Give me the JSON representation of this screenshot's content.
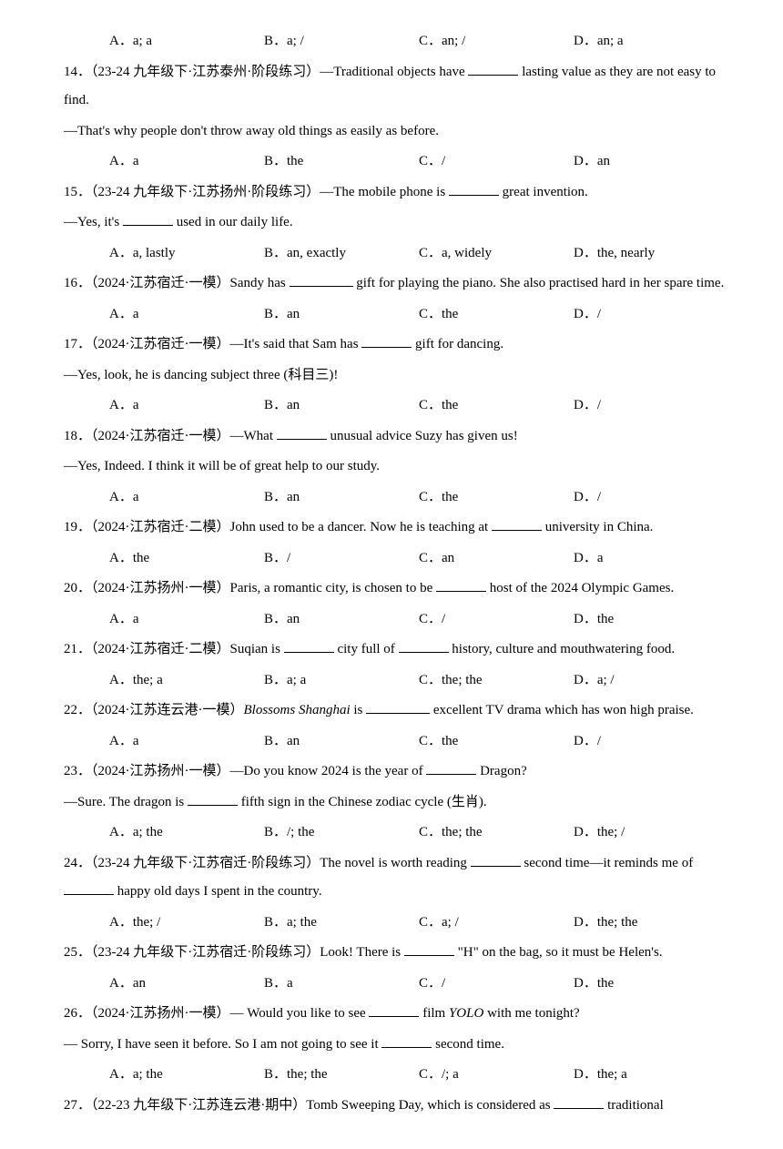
{
  "q13_options": {
    "a": "A．a; a",
    "b": "B．a; /",
    "c": "C．an; /",
    "d": "D．an; a"
  },
  "q14": {
    "num": "14．",
    "source": "（23-24 九年级下·江苏泰州·阶段练习）",
    "text1": "—Traditional objects have ",
    "text2": " lasting value as they are not easy to find.",
    "line2": "—That's why people don't throw away old things as easily as before.",
    "options": {
      "a": "A．a",
      "b": "B．the",
      "c": "C．/",
      "d": "D．an"
    }
  },
  "q15": {
    "num": "15．",
    "source": "（23-24 九年级下·江苏扬州·阶段练习）",
    "text1": "—The mobile phone is ",
    "text2": " great invention.",
    "line2a": "—Yes, it's ",
    "line2b": " used in our daily life.",
    "options": {
      "a": "A．a, lastly",
      "b": "B．an, exactly",
      "c": "C．a, widely",
      "d": "D．the, nearly"
    }
  },
  "q16": {
    "num": "16．",
    "source": "（2024·江苏宿迁·一模）",
    "text1": "Sandy has ",
    "text2": " gift for playing the piano. She also practised hard in her spare time.",
    "options": {
      "a": "A．a",
      "b": "B．an",
      "c": "C．the",
      "d": "D．/"
    }
  },
  "q17": {
    "num": "17．",
    "source": "（2024·江苏宿迁·一模）",
    "text1": "—It's said that Sam has ",
    "text2": " gift for dancing.",
    "line2": "—Yes, look, he is dancing subject three (科目三)!",
    "options": {
      "a": "A．a",
      "b": "B．an",
      "c": "C．the",
      "d": "D．/"
    }
  },
  "q18": {
    "num": "18．",
    "source": "（2024·江苏宿迁·一模）",
    "text1": "—What ",
    "text2": " unusual advice Suzy has given us!",
    "line2": "—Yes, Indeed. I think it will be of great help to our study.",
    "options": {
      "a": "A．a",
      "b": "B．an",
      "c": "C．the",
      "d": "D．/"
    }
  },
  "q19": {
    "num": "19．",
    "source": "（2024·江苏宿迁·二模）",
    "text1": "John used to be a dancer. Now he is teaching at ",
    "text2": " university in China.",
    "options": {
      "a": "A．the",
      "b": "B．/",
      "c": "C．an",
      "d": "D．a"
    }
  },
  "q20": {
    "num": "20．",
    "source": "（2024·江苏扬州·一模）",
    "text1": "Paris, a romantic city, is chosen to be ",
    "text2": " host of the 2024 Olympic Games.",
    "options": {
      "a": "A．a",
      "b": "B．an",
      "c": "C．/",
      "d": "D．the"
    }
  },
  "q21": {
    "num": "21．",
    "source": "（2024·江苏宿迁·二模）",
    "text1": "Suqian is ",
    "text2": " city full of ",
    "text3": " history, culture and mouthwatering food.",
    "options": {
      "a": "A．the; a",
      "b": "B．a; a",
      "c": "C．the; the",
      "d": "D．a; /"
    }
  },
  "q22": {
    "num": "22．",
    "source": "（2024·江苏连云港·一模）",
    "italic": "Blossoms Shanghai",
    "text1": " is ",
    "text2": " excellent TV drama which has won high praise.",
    "options": {
      "a": "A．a",
      "b": "B．an",
      "c": "C．the",
      "d": "D．/"
    }
  },
  "q23": {
    "num": "23．",
    "source": "（2024·江苏扬州·一模）",
    "text1": "—Do you know 2024 is the year of ",
    "text2": " Dragon?",
    "line2a": "—Sure. The dragon is ",
    "line2b": " fifth sign in the Chinese zodiac cycle (生肖).",
    "options": {
      "a": "A．a; the",
      "b": "B．/; the",
      "c": "C．the; the",
      "d": "D．the; /"
    }
  },
  "q24": {
    "num": "24．",
    "source": "（23-24 九年级下·江苏宿迁·阶段练习）",
    "text1": "The novel is worth reading ",
    "text2": " second time—it reminds me of ",
    "text3": " happy old days I spent in the country.",
    "options": {
      "a": "A．the; /",
      "b": "B．a; the",
      "c": "C．a; /",
      "d": "D．the; the"
    }
  },
  "q25": {
    "num": "25．",
    "source": "（23-24 九年级下·江苏宿迁·阶段练习）",
    "text1": "Look! There is ",
    "text2": " \"H\" on the bag, so it must be Helen's.",
    "options": {
      "a": "A．an",
      "b": "B．a",
      "c": "C．/",
      "d": "D．the"
    }
  },
  "q26": {
    "num": "26．",
    "source": "（2024·江苏扬州·一模）",
    "text1": "— Would you like to see ",
    "text2": " film ",
    "italic": "YOLO",
    "text3": " with me tonight?",
    "line2a": "— Sorry, I have seen it before. So I am not going to see it ",
    "line2b": " second time.",
    "options": {
      "a": "A．a; the",
      "b": "B．the; the",
      "c": "C．/; a",
      "d": "D．the; a"
    }
  },
  "q27": {
    "num": "27．",
    "source": "（22-23 九年级下·江苏连云港·期中）",
    "text1": "Tomb Sweeping Day, which is considered as ",
    "text2": " traditional"
  }
}
